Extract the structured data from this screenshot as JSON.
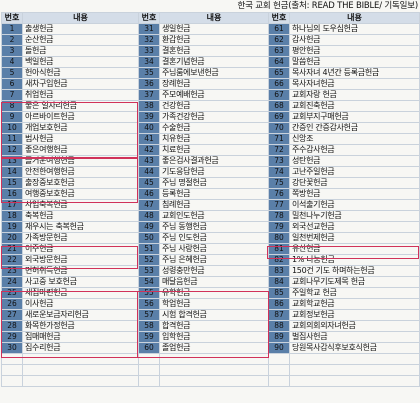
{
  "title": "한국 교회 헌금(출처: READ THE BIBLE/ 기독일보)",
  "headers": [
    "번호",
    "내용",
    "번호",
    "내용",
    "번호",
    "내용"
  ],
  "columns": [
    {
      "start": 1,
      "items": [
        "출생헌금",
        "순산헌금",
        "돌헌금",
        "백일헌금",
        "헌아식헌금",
        "새차구입헌금",
        "취업헌금",
        "좋은 일자리헌금",
        "아르바이트헌금",
        "개업보호헌금",
        "범사헌금",
        "좋은여행헌금",
        "즐거운여행헌금",
        "안전한여행헌금",
        "출장중보호헌금",
        "여행중보호헌금",
        "사업축복헌금",
        "축복헌금",
        "재우시는 축복헌금",
        "가족방문헌금",
        "이주헌금",
        "외국방문헌금",
        "면허취득헌금",
        "사고중 보호헌금",
        "새집마련헌금",
        "이사헌금",
        "새로운보금자리헌금",
        "화목한가정헌금",
        "집매매헌금",
        "집수리헌금"
      ]
    },
    {
      "start": 31,
      "items": [
        "생일헌금",
        "환갑헌금",
        "결혼헌금",
        "결혼기념헌금",
        "주님룸에보낸헌금",
        "장례헌금",
        "주모예배헌금",
        "건강헌금",
        "가족건강헌금",
        "수술헌금",
        "치유헌금",
        "치료헌금",
        "좋은검사결과헌금",
        "기도응답헌금",
        "주님 명절헌금",
        "등록헌금",
        "침례헌금",
        "교회인도헌금",
        "주님 동행헌금",
        "주님 인도헌금",
        "주님 사랑헌금",
        "주님 은혜헌금",
        "성령충만헌금",
        "매달음헌금",
        "유학헌금",
        "학업헌금",
        "시험 합격헌금",
        "합격헌금",
        "입학헌금",
        "졸업헌금"
      ]
    },
    {
      "start": 61,
      "items": [
        "하나님의 도우심헌금",
        "감사헌금",
        "평안헌금",
        "말씀헌금",
        "목사자녀 4년간 등록금헌금",
        "목사자녀헌금",
        "교회자랑 헌금",
        "교회진축헌금",
        "교회부지구매헌금",
        "간증인 간증감사헌금",
        "신앙조",
        "주수감사헌금",
        "성탄헌금",
        "고난주일헌금",
        "강단꽃헌금",
        "쪽방헌금",
        "이석출기헌금",
        "밀천나누기헌금",
        "외국선교헌금",
        "일천번제헌금",
        "유산헌금",
        "1% 나눔헌금",
        "150건 기도 하며하는헌금",
        "교회나무기도제목 헌금",
        "주일학교 헌금",
        "교회학교헌금",
        "교회정보헌금",
        "교회의회외자녀헌금",
        "벌집사헌금",
        "당원목사감식후보호식헌금"
      ]
    }
  ]
}
